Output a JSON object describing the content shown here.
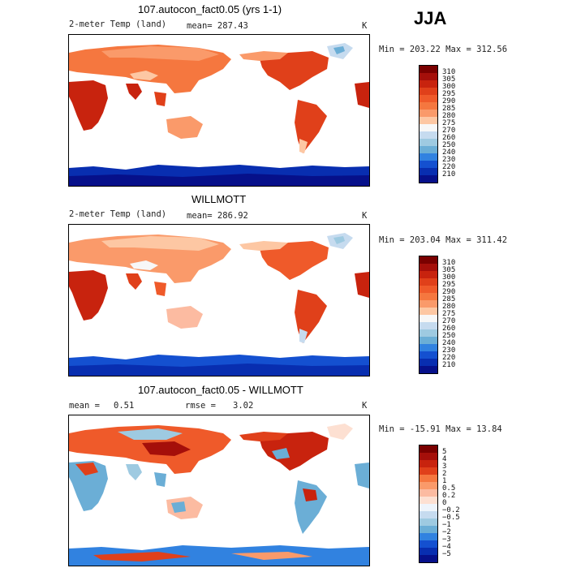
{
  "season": "JJA",
  "panels": [
    {
      "title": "107.autocon_fact0.05 (yrs 1-1)",
      "variable": "2-meter Temp (land)",
      "stat1": "mean= 287.43",
      "unit": "K",
      "minmax": "Min = 203.22 Max = 312.56",
      "colorbar": {
        "labels": [
          "310",
          "305",
          "300",
          "295",
          "290",
          "285",
          "280",
          "275",
          "270",
          "260",
          "250",
          "240",
          "230",
          "220",
          "210"
        ],
        "colors": [
          "#7a0000",
          "#a50f0a",
          "#c8230e",
          "#e0401a",
          "#ef5a2a",
          "#f5773f",
          "#fa9a6a",
          "#fdc7a3",
          "#f7f7f7",
          "#c6dbef",
          "#9ecae1",
          "#6baed6",
          "#3182e0",
          "#1450d0",
          "#082eb0",
          "#06108a"
        ]
      }
    },
    {
      "title": "WILLMOTT",
      "variable": "2-meter Temp (land)",
      "stat1": "mean= 286.92",
      "unit": "K",
      "minmax": "Min = 203.04 Max = 311.42",
      "colorbar": {
        "labels": [
          "310",
          "305",
          "300",
          "295",
          "290",
          "285",
          "280",
          "275",
          "270",
          "260",
          "250",
          "240",
          "230",
          "220",
          "210"
        ],
        "colors": [
          "#7a0000",
          "#a50f0a",
          "#c8230e",
          "#e0401a",
          "#ef5a2a",
          "#f5773f",
          "#fa9a6a",
          "#fdc7a3",
          "#f7f7f7",
          "#c6dbef",
          "#9ecae1",
          "#6baed6",
          "#3182e0",
          "#1450d0",
          "#082eb0",
          "#06108a"
        ]
      }
    },
    {
      "title": "107.autocon_fact0.05 - WILLMOTT",
      "stat1_label": "mean =",
      "stat1_value": "0.51",
      "stat2_label": "rmse =",
      "stat2_value": "3.02",
      "unit": "K",
      "minmax": "Min = -15.91 Max =   13.84",
      "colorbar": {
        "labels": [
          "5",
          "4",
          "3",
          "2",
          "1",
          "0.5",
          "0.2",
          "0",
          "−0.2",
          "−0.5",
          "−1",
          "−2",
          "−3",
          "−4",
          "−5"
        ],
        "colors": [
          "#7a0000",
          "#a50f0a",
          "#c8230e",
          "#e0401a",
          "#f5773f",
          "#fa9a6a",
          "#fcbba1",
          "#fde0d2",
          "#eef4fb",
          "#c6dbef",
          "#9ecae1",
          "#6baed6",
          "#3182e0",
          "#1450d0",
          "#082eb0",
          "#06108a"
        ]
      }
    }
  ]
}
